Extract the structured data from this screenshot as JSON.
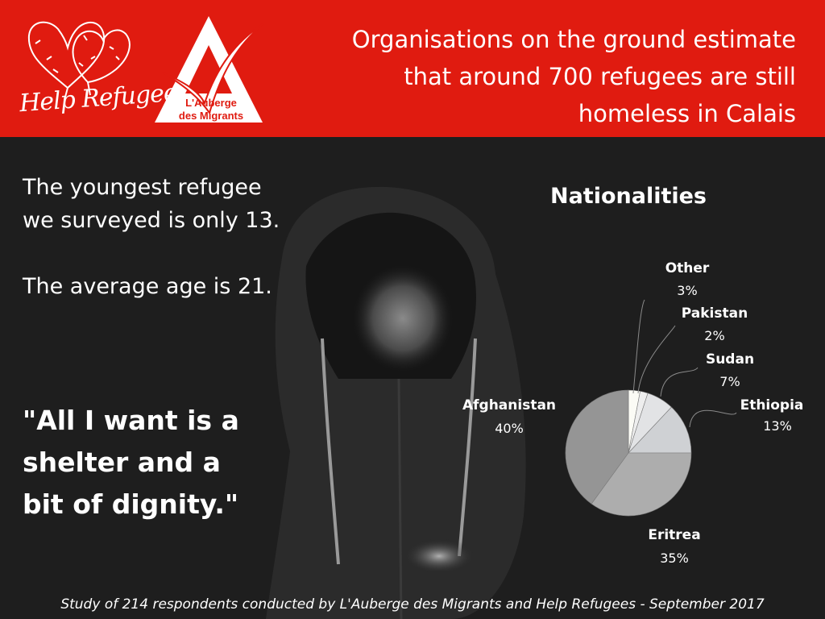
{
  "header": {
    "help_refugees_logo_text": "Help Refugees",
    "auberge_logo_line1": "L'Auberge",
    "auberge_logo_line2": "des Migrants",
    "headline_lines": [
      "Organisations on the ground estimate",
      "that  around 700 refugees are still",
      "homeless in Calais"
    ]
  },
  "facts": {
    "line1": "The youngest refugee",
    "line2": "we surveyed is only 13.",
    "line3": "The average age is 21."
  },
  "quote": {
    "line1": "\"All I want is a",
    "line2": "shelter and a",
    "line3": "bit of dignity.\""
  },
  "chart_data": {
    "type": "pie",
    "title": "Nationalities",
    "slices": [
      {
        "label": "Other",
        "value": 3,
        "display": "3%",
        "color": "#fbfbf5"
      },
      {
        "label": "Pakistan",
        "value": 2,
        "display": "2%",
        "color": "#eeeeee"
      },
      {
        "label": "Sudan",
        "value": 7,
        "display": "7%",
        "color": "#e2e3e5"
      },
      {
        "label": "Ethiopia",
        "value": 13,
        "display": "13%",
        "color": "#cfd1d4"
      },
      {
        "label": "Eritrea",
        "value": 35,
        "display": "35%",
        "color": "#adadad"
      },
      {
        "label": "Afghanistan",
        "value": 40,
        "display": "40%",
        "color": "#959595"
      }
    ]
  },
  "footer": {
    "text": "Study of 214 respondents conducted by L'Auberge des Migrants and Help Refugees - September 2017"
  },
  "colors": {
    "header_red": "#e01b10",
    "background": "#1e1e1e",
    "text": "#ffffff"
  }
}
